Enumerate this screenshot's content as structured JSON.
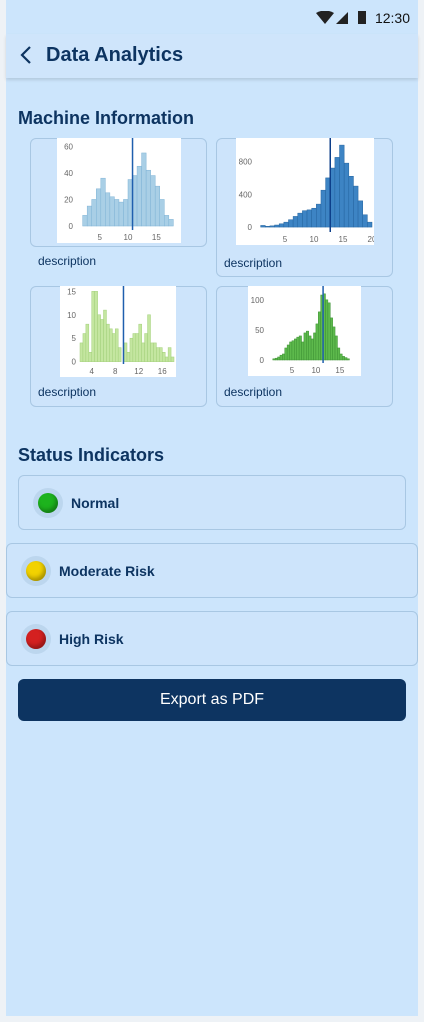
{
  "status_bar": {
    "time": "12:30"
  },
  "header": {
    "title": "Data Analytics"
  },
  "machine_information": {
    "title": "Machine Information",
    "charts": [
      {
        "type": "histogram",
        "color": "#a9cfe6",
        "edge": "#7fb3d6",
        "marker_color": "#1f5fae",
        "bins": [
          2.0,
          2.8,
          3.6,
          4.4,
          5.2,
          6.0,
          6.8,
          7.6,
          8.4,
          9.2,
          10.0,
          10.8,
          11.6,
          12.4,
          13.2,
          14.0,
          14.8,
          15.6,
          16.4,
          17.2,
          18.0
        ],
        "counts": [
          8,
          15,
          20,
          28,
          36,
          25,
          22,
          20,
          18,
          20,
          35,
          38,
          45,
          55,
          42,
          38,
          30,
          20,
          8,
          5
        ],
        "marker": 10.8,
        "xlim": [
          1,
          19
        ],
        "ylim": [
          -3,
          64
        ],
        "xticks": [
          5,
          10,
          15
        ],
        "yticks": [
          0,
          20,
          40,
          60
        ],
        "description": "description"
      },
      {
        "type": "histogram",
        "color": "#3d84c4",
        "edge": "#24649f",
        "marker_color": "#0d3f8a",
        "bins": [
          0.8,
          1.6,
          2.4,
          3.2,
          4.0,
          4.8,
          5.6,
          6.4,
          7.2,
          8.0,
          8.8,
          9.6,
          10.4,
          11.2,
          12.0,
          12.8,
          13.6,
          14.4,
          15.2,
          16.0,
          16.8,
          17.6,
          18.4,
          19.2,
          20.0
        ],
        "counts": [
          20,
          10,
          15,
          25,
          40,
          60,
          90,
          130,
          170,
          200,
          210,
          230,
          280,
          450,
          600,
          720,
          850,
          1000,
          780,
          620,
          500,
          320,
          150,
          60
        ],
        "marker": 12.8,
        "xlim": [
          0,
          20
        ],
        "ylim": [
          -60,
          1050
        ],
        "xticks": [
          5,
          10,
          15,
          20
        ],
        "yticks": [
          0,
          400,
          800
        ],
        "description": "description"
      },
      {
        "type": "histogram",
        "color": "#c4e6a0",
        "edge": "#a2d07a",
        "marker_color": "#1f5fae",
        "bins": [
          2,
          2.5,
          3,
          3.5,
          4,
          4.5,
          5,
          5.5,
          6,
          6.5,
          7,
          7.5,
          8,
          8.5,
          9,
          9.5,
          10,
          10.5,
          11,
          11.5,
          12,
          12.5,
          13,
          13.5,
          14,
          14.5,
          15,
          15.5,
          16,
          16.5,
          17,
          17.5,
          18
        ],
        "counts": [
          4,
          6,
          8,
          2,
          15,
          15,
          10,
          9,
          11,
          8,
          7,
          6,
          7,
          3,
          0,
          4,
          2,
          5,
          6,
          6,
          8,
          4,
          6,
          10,
          4,
          4,
          3,
          3,
          2,
          1,
          3,
          1
        ],
        "marker": 9.4,
        "xlim": [
          2,
          18
        ],
        "ylim": [
          -0.5,
          15.5
        ],
        "xticks": [
          4,
          8,
          12,
          16
        ],
        "yticks": [
          0,
          5,
          10,
          15
        ],
        "description": "description"
      },
      {
        "type": "histogram",
        "color": "#5db94c",
        "edge": "#3d9233",
        "marker_color": "#1f5fae",
        "bins": [
          1,
          1.5,
          2,
          2.5,
          3,
          3.5,
          4,
          4.5,
          5,
          5.5,
          6,
          6.5,
          7,
          7.5,
          8,
          8.5,
          9,
          9.5,
          10,
          10.5,
          11,
          11.5,
          12,
          12.5,
          13,
          13.5,
          14,
          14.5,
          15,
          15.5,
          16,
          16.5,
          17
        ],
        "counts": [
          2,
          3,
          5,
          8,
          10,
          20,
          25,
          30,
          32,
          35,
          38,
          40,
          30,
          45,
          48,
          40,
          35,
          45,
          60,
          80,
          108,
          110,
          100,
          95,
          70,
          55,
          40,
          20,
          10,
          6,
          4,
          2
        ],
        "marker": 11.5,
        "xlim": [
          0,
          19
        ],
        "ylim": [
          -5,
          118
        ],
        "xticks": [
          5,
          10,
          15
        ],
        "yticks": [
          0,
          50,
          100
        ],
        "description": "description"
      }
    ]
  },
  "status_indicators": {
    "title": "Status Indicators",
    "items": [
      {
        "label": "Normal",
        "color": "#1db31d"
      },
      {
        "label": "Moderate Risk",
        "color": "#f2d200"
      },
      {
        "label": "High Risk",
        "color": "#d42020"
      }
    ]
  },
  "export_button": {
    "label": "Export as PDF"
  }
}
